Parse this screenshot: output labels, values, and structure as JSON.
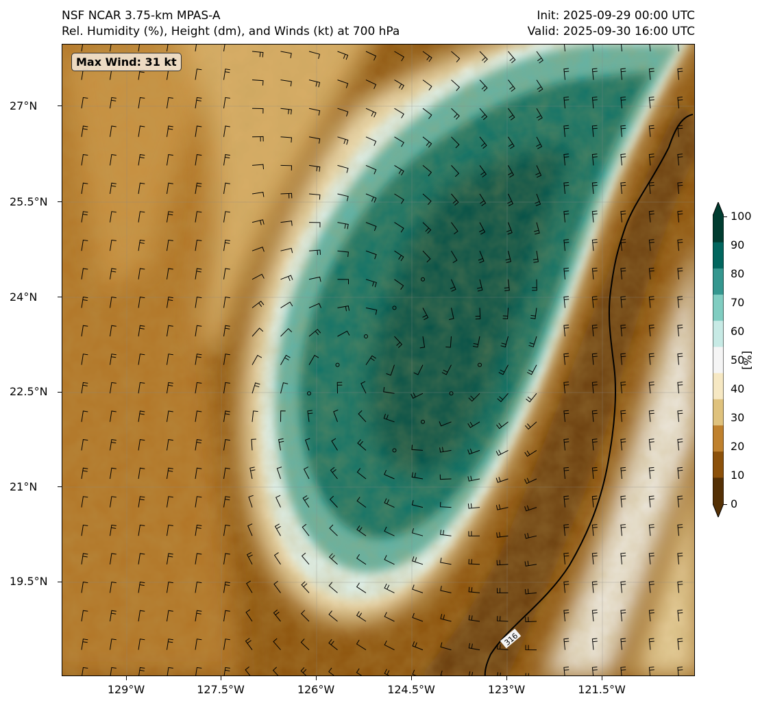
{
  "header": {
    "title_left_1": "NSF NCAR 3.75-km MPAS-A",
    "title_left_2": "Rel. Humidity (%), Height (dm), and Winds (kt) at 700 hPa",
    "title_right_1": "Init: 2025-09-29 00:00 UTC",
    "title_right_2": "Valid: 2025-09-30 16:00 UTC"
  },
  "map": {
    "max_wind_label": "Max Wind: 31 kt",
    "contour_label": "316",
    "lat_labels": [
      "27°N",
      "25.5°N",
      "24°N",
      "22.5°N",
      "21°N",
      "19.5°N"
    ],
    "lon_labels": [
      "129°W",
      "127.5°W",
      "126°W",
      "124.5°W",
      "123°W",
      "121.5°W"
    ]
  },
  "colorbar": {
    "unit": "[%]",
    "ticks": [
      "100",
      "90",
      "80",
      "70",
      "60",
      "50",
      "40",
      "30",
      "20",
      "10",
      "0"
    ],
    "colors": [
      "#543005",
      "#8c510a",
      "#bf812d",
      "#dfc27d",
      "#f6e8c3",
      "#f5f5f5",
      "#c7eae5",
      "#80cdc1",
      "#35978f",
      "#01665e",
      "#003c30"
    ]
  }
}
